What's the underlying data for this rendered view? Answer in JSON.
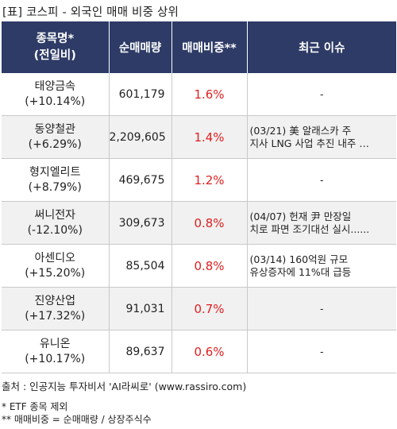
{
  "title": "[표] 코스피 - 외국인 매매 비중 상위",
  "headers": {
    "name_line1": "종목명*",
    "name_line2": "(전일비)",
    "qty": "순매매량",
    "ratio": "매매비중**",
    "issue": "최근 이슈"
  },
  "rows": [
    {
      "name": "태양금속",
      "change": "(+10.14%)",
      "qty": "601,179",
      "ratio": "1.6%",
      "issue_line1": "-",
      "issue_line2": ""
    },
    {
      "name": "동양철관",
      "change": "(+6.29%)",
      "qty": "2,209,605",
      "ratio": "1.4%",
      "issue_line1": "(03/21) 美 알래스카 주",
      "issue_line2": "지사 LNG 사업 추진 내주 …"
    },
    {
      "name": "형지엘리트",
      "change": "(+8.79%)",
      "qty": "469,675",
      "ratio": "1.2%",
      "issue_line1": "-",
      "issue_line2": ""
    },
    {
      "name": "써니전자",
      "change": "(-12.10%)",
      "qty": "309,673",
      "ratio": "0.8%",
      "issue_line1": "(04/07) 헌재 尹 만장일",
      "issue_line2": "치로 파면 조기대선 실시......"
    },
    {
      "name": "아센디오",
      "change": "(+15.20%)",
      "qty": "85,504",
      "ratio": "0.8%",
      "issue_line1": "(03/14) 160억원 규모",
      "issue_line2": "유상증자에 11%대 급등"
    },
    {
      "name": "진양산업",
      "change": "(+17.32%)",
      "qty": "91,031",
      "ratio": "0.7%",
      "issue_line1": "-",
      "issue_line2": ""
    },
    {
      "name": "유니온",
      "change": "(+10.17%)",
      "qty": "89,637",
      "ratio": "0.6%",
      "issue_line1": "-",
      "issue_line2": ""
    }
  ],
  "source": "출처 : 인공지능 투자비서 'AI라씨로' (www.rassiro.com)",
  "note1": "* ETF 종목 제외",
  "note2": "** 매매비중 = 순매매량 / 상장주식수",
  "colors": {
    "header_bg": "#2e3b66",
    "ratio_text": "#e02020",
    "stripe": "#f1f1f1"
  }
}
